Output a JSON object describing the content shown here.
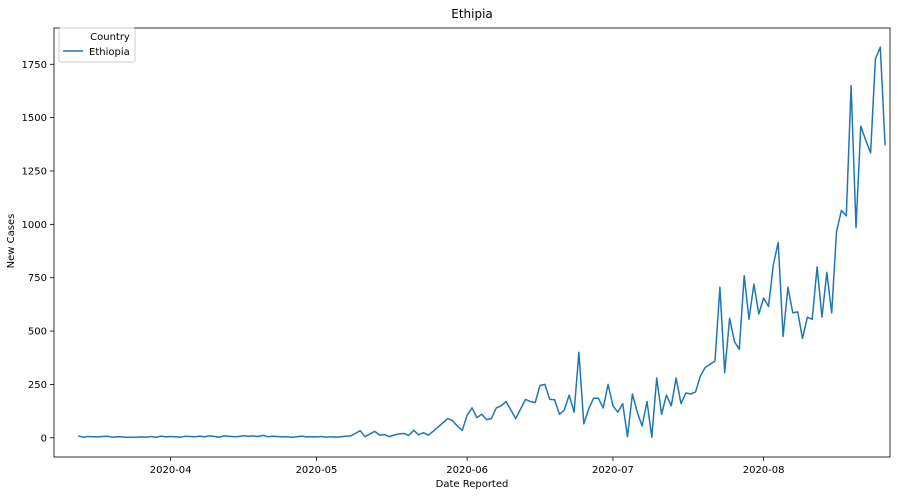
{
  "chart_data": {
    "type": "line",
    "title": "Ethipia",
    "xlabel": "Date Reported",
    "ylabel": "New Cases",
    "xlim": [
      "2020-03-08",
      "2020-08-27"
    ],
    "ylim": [
      -90,
      1920
    ],
    "x_ticks": [
      "2020-04-01",
      "2020-05-01",
      "2020-06-01",
      "2020-07-01",
      "2020-08-01"
    ],
    "x_tick_labels": [
      "2020-04",
      "2020-05",
      "2020-06",
      "2020-07",
      "2020-08"
    ],
    "y_ticks": [
      0,
      250,
      500,
      750,
      1000,
      1250,
      1500,
      1750
    ],
    "y_tick_labels": [
      "0",
      "250",
      "500",
      "750",
      "1000",
      "1250",
      "1500",
      "1750"
    ],
    "grid": false,
    "legend": {
      "title": "Country",
      "placement": "top-left",
      "entries": [
        "Ethiopia"
      ]
    },
    "series": [
      {
        "name": "Ethiopia",
        "color": "#1f77b4",
        "points": [
          [
            "2020-03-13",
            9
          ],
          [
            "2020-03-14",
            3
          ],
          [
            "2020-03-15",
            6
          ],
          [
            "2020-03-16",
            5
          ],
          [
            "2020-03-17",
            4
          ],
          [
            "2020-03-18",
            6
          ],
          [
            "2020-03-19",
            7
          ],
          [
            "2020-03-20",
            3
          ],
          [
            "2020-03-21",
            5
          ],
          [
            "2020-03-22",
            4
          ],
          [
            "2020-03-23",
            2
          ],
          [
            "2020-03-24",
            3
          ],
          [
            "2020-03-25",
            3
          ],
          [
            "2020-03-26",
            4
          ],
          [
            "2020-03-27",
            3
          ],
          [
            "2020-03-28",
            6
          ],
          [
            "2020-03-29",
            2
          ],
          [
            "2020-03-30",
            8
          ],
          [
            "2020-03-31",
            4
          ],
          [
            "2020-04-01",
            6
          ],
          [
            "2020-04-02",
            5
          ],
          [
            "2020-04-03",
            3
          ],
          [
            "2020-04-04",
            7
          ],
          [
            "2020-04-05",
            6
          ],
          [
            "2020-04-06",
            5
          ],
          [
            "2020-04-07",
            8
          ],
          [
            "2020-04-08",
            4
          ],
          [
            "2020-04-09",
            10
          ],
          [
            "2020-04-10",
            6
          ],
          [
            "2020-04-11",
            3
          ],
          [
            "2020-04-12",
            9
          ],
          [
            "2020-04-13",
            7
          ],
          [
            "2020-04-14",
            5
          ],
          [
            "2020-04-15",
            6
          ],
          [
            "2020-04-16",
            10
          ],
          [
            "2020-04-17",
            7
          ],
          [
            "2020-04-18",
            9
          ],
          [
            "2020-04-19",
            6
          ],
          [
            "2020-04-20",
            11
          ],
          [
            "2020-04-21",
            5
          ],
          [
            "2020-04-22",
            7
          ],
          [
            "2020-04-23",
            6
          ],
          [
            "2020-04-24",
            5
          ],
          [
            "2020-04-25",
            4
          ],
          [
            "2020-04-26",
            3
          ],
          [
            "2020-04-27",
            5
          ],
          [
            "2020-04-28",
            8
          ],
          [
            "2020-04-29",
            4
          ],
          [
            "2020-04-30",
            5
          ],
          [
            "2020-05-01",
            4
          ],
          [
            "2020-05-02",
            6
          ],
          [
            "2020-05-03",
            3
          ],
          [
            "2020-05-04",
            5
          ],
          [
            "2020-05-05",
            3
          ],
          [
            "2020-05-06",
            5
          ],
          [
            "2020-05-07",
            7
          ],
          [
            "2020-05-08",
            9
          ],
          [
            "2020-05-09",
            20
          ],
          [
            "2020-05-10",
            33
          ],
          [
            "2020-05-11",
            5
          ],
          [
            "2020-05-12",
            18
          ],
          [
            "2020-05-13",
            30
          ],
          [
            "2020-05-14",
            12
          ],
          [
            "2020-05-15",
            15
          ],
          [
            "2020-05-16",
            5
          ],
          [
            "2020-05-17",
            13
          ],
          [
            "2020-05-18",
            18
          ],
          [
            "2020-05-19",
            20
          ],
          [
            "2020-05-20",
            11
          ],
          [
            "2020-05-21",
            35
          ],
          [
            "2020-05-22",
            14
          ],
          [
            "2020-05-23",
            24
          ],
          [
            "2020-05-24",
            12
          ],
          [
            "2020-05-25",
            30
          ],
          [
            "2020-05-26",
            50
          ],
          [
            "2020-05-27",
            70
          ],
          [
            "2020-05-28",
            90
          ],
          [
            "2020-05-29",
            80
          ],
          [
            "2020-05-30",
            55
          ],
          [
            "2020-05-31",
            35
          ],
          [
            "2020-06-01",
            105
          ],
          [
            "2020-06-02",
            140
          ],
          [
            "2020-06-03",
            95
          ],
          [
            "2020-06-04",
            110
          ],
          [
            "2020-06-05",
            85
          ],
          [
            "2020-06-06",
            90
          ],
          [
            "2020-06-07",
            140
          ],
          [
            "2020-06-08",
            150
          ],
          [
            "2020-06-09",
            170
          ],
          [
            "2020-06-10",
            130
          ],
          [
            "2020-06-11",
            90
          ],
          [
            "2020-06-12",
            135
          ],
          [
            "2020-06-13",
            180
          ],
          [
            "2020-06-14",
            170
          ],
          [
            "2020-06-15",
            165
          ],
          [
            "2020-06-16",
            245
          ],
          [
            "2020-06-17",
            250
          ],
          [
            "2020-06-18",
            180
          ],
          [
            "2020-06-19",
            178
          ],
          [
            "2020-06-20",
            110
          ],
          [
            "2020-06-21",
            130
          ],
          [
            "2020-06-22",
            200
          ],
          [
            "2020-06-23",
            120
          ],
          [
            "2020-06-24",
            400
          ],
          [
            "2020-06-25",
            65
          ],
          [
            "2020-06-26",
            135
          ],
          [
            "2020-06-27",
            185
          ],
          [
            "2020-06-28",
            185
          ],
          [
            "2020-06-29",
            140
          ],
          [
            "2020-06-30",
            250
          ],
          [
            "2020-07-01",
            150
          ],
          [
            "2020-07-02",
            120
          ],
          [
            "2020-07-03",
            160
          ],
          [
            "2020-07-04",
            5
          ],
          [
            "2020-07-05",
            205
          ],
          [
            "2020-07-06",
            120
          ],
          [
            "2020-07-07",
            55
          ],
          [
            "2020-07-08",
            170
          ],
          [
            "2020-07-09",
            3
          ],
          [
            "2020-07-10",
            280
          ],
          [
            "2020-07-11",
            110
          ],
          [
            "2020-07-12",
            200
          ],
          [
            "2020-07-13",
            150
          ],
          [
            "2020-07-14",
            280
          ],
          [
            "2020-07-15",
            160
          ],
          [
            "2020-07-16",
            210
          ],
          [
            "2020-07-17",
            205
          ],
          [
            "2020-07-18",
            215
          ],
          [
            "2020-07-19",
            290
          ],
          [
            "2020-07-20",
            330
          ],
          [
            "2020-07-21",
            345
          ],
          [
            "2020-07-22",
            360
          ],
          [
            "2020-07-23",
            705
          ],
          [
            "2020-07-24",
            305
          ],
          [
            "2020-07-25",
            560
          ],
          [
            "2020-07-26",
            450
          ],
          [
            "2020-07-27",
            415
          ],
          [
            "2020-07-28",
            760
          ],
          [
            "2020-07-29",
            555
          ],
          [
            "2020-07-30",
            720
          ],
          [
            "2020-07-31",
            580
          ],
          [
            "2020-08-01",
            655
          ],
          [
            "2020-08-02",
            615
          ],
          [
            "2020-08-03",
            810
          ],
          [
            "2020-08-04",
            915
          ],
          [
            "2020-08-05",
            475
          ],
          [
            "2020-08-06",
            705
          ],
          [
            "2020-08-07",
            585
          ],
          [
            "2020-08-08",
            590
          ],
          [
            "2020-08-09",
            465
          ],
          [
            "2020-08-10",
            565
          ],
          [
            "2020-08-11",
            555
          ],
          [
            "2020-08-12",
            800
          ],
          [
            "2020-08-13",
            565
          ],
          [
            "2020-08-14",
            775
          ],
          [
            "2020-08-15",
            585
          ],
          [
            "2020-08-16",
            965
          ],
          [
            "2020-08-17",
            1065
          ],
          [
            "2020-08-18",
            1040
          ],
          [
            "2020-08-19",
            1650
          ],
          [
            "2020-08-20",
            985
          ],
          [
            "2020-08-21",
            1460
          ],
          [
            "2020-08-22",
            1395
          ],
          [
            "2020-08-23",
            1335
          ],
          [
            "2020-08-24",
            1775
          ],
          [
            "2020-08-25",
            1830
          ],
          [
            "2020-08-26",
            1370
          ]
        ]
      }
    ]
  }
}
